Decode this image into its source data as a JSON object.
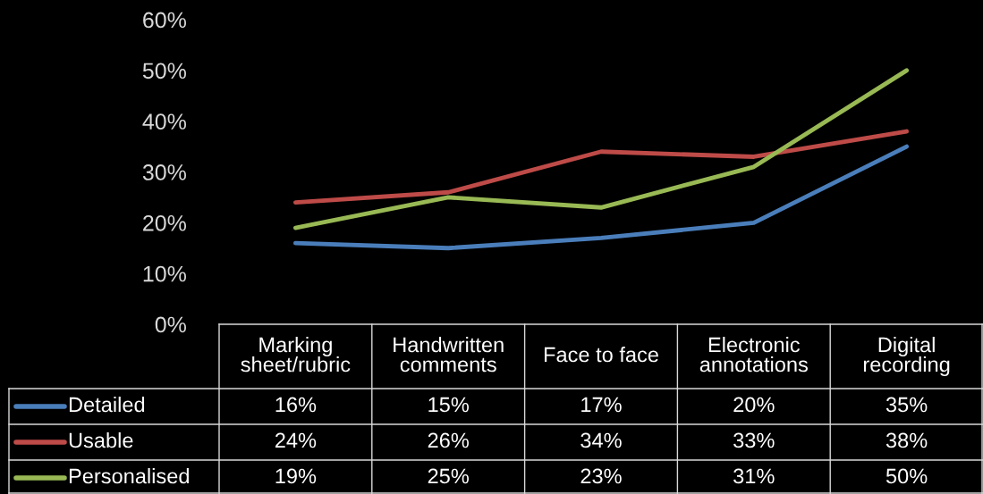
{
  "chart_data": {
    "type": "line",
    "categories": [
      "Marking\nsheet/rubric",
      "Handwritten\ncomments",
      "Face to face",
      "Electronic\nannotations",
      "Digital\nrecording"
    ],
    "series": [
      {
        "name": "Detailed",
        "color": "#4a7ebb",
        "values": [
          16,
          15,
          17,
          20,
          35
        ],
        "value_labels": [
          "16%",
          "15%",
          "17%",
          "20%",
          "35%"
        ]
      },
      {
        "name": "Usable",
        "color": "#be4b48",
        "values": [
          24,
          26,
          34,
          33,
          38
        ],
        "value_labels": [
          "24%",
          "26%",
          "34%",
          "33%",
          "38%"
        ]
      },
      {
        "name": "Personalised",
        "color": "#98b954",
        "values": [
          19,
          25,
          23,
          31,
          50
        ],
        "value_labels": [
          "19%",
          "25%",
          "23%",
          "31%",
          "50%"
        ]
      }
    ],
    "ylim": [
      0,
      60
    ],
    "yticks": [
      {
        "value": 0,
        "label": "0%"
      },
      {
        "value": 10,
        "label": "10%"
      },
      {
        "value": 20,
        "label": "20%"
      },
      {
        "value": 30,
        "label": "30%"
      },
      {
        "value": 40,
        "label": "40%"
      },
      {
        "value": 50,
        "label": "50%"
      },
      {
        "value": 60,
        "label": "60%"
      }
    ],
    "grid": false,
    "legend": "bottom left",
    "marker": "none",
    "line_style": "solid"
  }
}
